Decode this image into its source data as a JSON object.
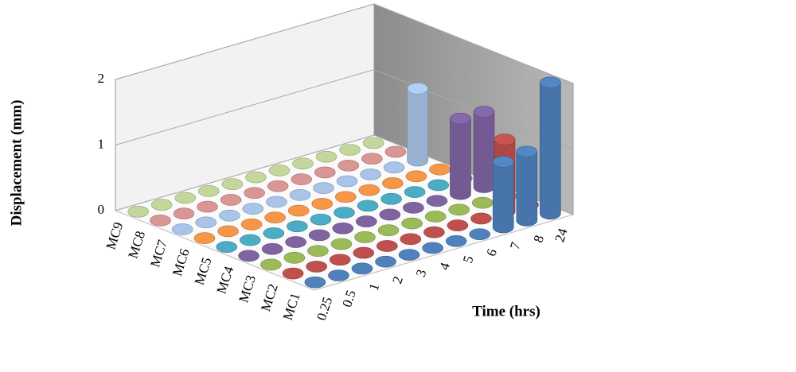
{
  "chart_data": {
    "type": "bar3d-cylinder",
    "y_label": "Displacement (mm)",
    "x_label": "Time (hrs)",
    "categories": [
      "0.25",
      "0.5",
      "1",
      "2",
      "3",
      "4",
      "5",
      "6",
      "7",
      "8",
      "24"
    ],
    "ylim": [
      0,
      2
    ],
    "yticks": [
      0,
      1,
      2
    ],
    "grid": true,
    "series": [
      {
        "name": "MC1",
        "color": "#4f81bd",
        "values": [
          0,
          0,
          0,
          0,
          0,
          0,
          0,
          0,
          1.0,
          1.05,
          2.0
        ]
      },
      {
        "name": "MC2",
        "color": "#c0504d",
        "values": [
          0,
          0,
          0,
          0,
          0,
          0,
          0,
          0,
          0,
          1.1,
          0
        ]
      },
      {
        "name": "MC3",
        "color": "#9bbb59",
        "values": [
          0,
          0,
          0,
          0,
          0,
          0,
          0,
          0,
          0,
          0,
          0
        ]
      },
      {
        "name": "MC4",
        "color": "#8064a2",
        "values": [
          0,
          0,
          0,
          0,
          0,
          0,
          0,
          0,
          0,
          1.15,
          1.15
        ]
      },
      {
        "name": "MC5",
        "color": "#4bacc6",
        "values": [
          0,
          0,
          0,
          0,
          0,
          0,
          0,
          0,
          0,
          0,
          0
        ]
      },
      {
        "name": "MC6",
        "color": "#f79646",
        "values": [
          0,
          0,
          0,
          0,
          0,
          0,
          0,
          0,
          0,
          0,
          0
        ]
      },
      {
        "name": "MC7",
        "color": "#a9c4e8",
        "values": [
          0,
          0,
          0,
          0,
          0,
          0,
          0,
          0,
          0,
          0,
          1.1
        ]
      },
      {
        "name": "MC8",
        "color": "#d99694",
        "values": [
          0,
          0,
          0,
          0,
          0,
          0,
          0,
          0,
          0,
          0,
          0
        ]
      },
      {
        "name": "MC9",
        "color": "#c3d69b",
        "values": [
          0,
          0,
          0,
          0,
          0,
          0,
          0,
          0,
          0,
          0,
          0
        ]
      }
    ]
  }
}
